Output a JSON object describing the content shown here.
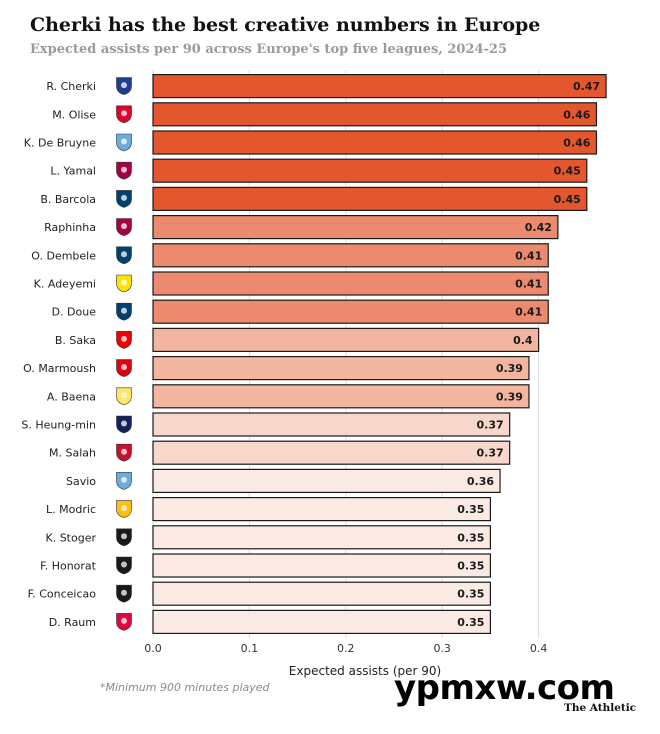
{
  "title": "Cherki has the best creative numbers in Europe",
  "subtitle": "Expected assists per 90 across Europe's top five leagues, 2024-25",
  "footnote": "*Minimum 900 minutes played",
  "watermark": "ypmxw.com",
  "brand": "The Athletic",
  "colors": {
    "high": "#e4572e",
    "mid_high": "#eb8a6f",
    "mid": "#f2b5a0",
    "low": "#f7d7cb",
    "lowest": "#fbeae3",
    "grid": "#dddddd",
    "bar_border": "#1a1a1a"
  },
  "chart_data": {
    "type": "bar",
    "orientation": "horizontal",
    "title": "Cherki has the best creative numbers in Europe",
    "subtitle": "Expected assists per 90 across Europe's top five leagues, 2024-25",
    "xlabel": "Expected assists (per 90)",
    "xlim": [
      0,
      0.47
    ],
    "xticks": [
      0.0,
      0.1,
      0.2,
      0.3,
      0.4
    ],
    "xtick_labels": [
      "0.0",
      "0.1",
      "0.2",
      "0.3",
      "0.4"
    ],
    "grid": true,
    "categories": [
      "R. Cherki",
      "M. Olise",
      "K. De Bruyne",
      "L. Yamal",
      "B. Barcola",
      "Raphinha",
      "O. Dembele",
      "K. Adeyemi",
      "D. Doue",
      "B. Saka",
      "O. Marmoush",
      "A. Baena",
      "S. Heung-min",
      "M. Salah",
      "Savio",
      "L. Modric",
      "K. Stoger",
      "F. Honorat",
      "F. Conceicao",
      "D. Raum"
    ],
    "values": [
      0.47,
      0.46,
      0.46,
      0.45,
      0.45,
      0.42,
      0.41,
      0.41,
      0.41,
      0.4,
      0.39,
      0.39,
      0.37,
      0.37,
      0.36,
      0.35,
      0.35,
      0.35,
      0.35,
      0.35
    ],
    "value_labels": [
      "0.47",
      "0.46",
      "0.46",
      "0.45",
      "0.45",
      "0.42",
      "0.41",
      "0.41",
      "0.41",
      "0.4",
      "0.39",
      "0.39",
      "0.37",
      "0.37",
      "0.36",
      "0.35",
      "0.35",
      "0.35",
      "0.35",
      "0.35"
    ],
    "club_logos": [
      "lyon-crest-icon",
      "bayern-crest-icon",
      "man-city-crest-icon",
      "barcelona-crest-icon",
      "psg-crest-icon",
      "barcelona-crest-icon",
      "psg-crest-icon",
      "dortmund-crest-icon",
      "psg-crest-icon",
      "arsenal-crest-icon",
      "frankfurt-crest-icon",
      "villarreal-crest-icon",
      "tottenham-crest-icon",
      "liverpool-crest-icon",
      "man-city-crest-icon",
      "real-madrid-crest-icon",
      "gladbach-crest-icon",
      "gladbach-crest-icon",
      "juventus-crest-icon",
      "leipzig-crest-icon"
    ],
    "logo_colors": [
      "#1d3d8f",
      "#dc052d",
      "#6cabdd",
      "#a50044",
      "#004170",
      "#a50044",
      "#004170",
      "#fde100",
      "#004170",
      "#ef0107",
      "#e1000f",
      "#ffe667",
      "#132257",
      "#c8102e",
      "#6cabdd",
      "#febe10",
      "#1a1a1a",
      "#1a1a1a",
      "#1a1a1a",
      "#dd0741"
    ]
  }
}
